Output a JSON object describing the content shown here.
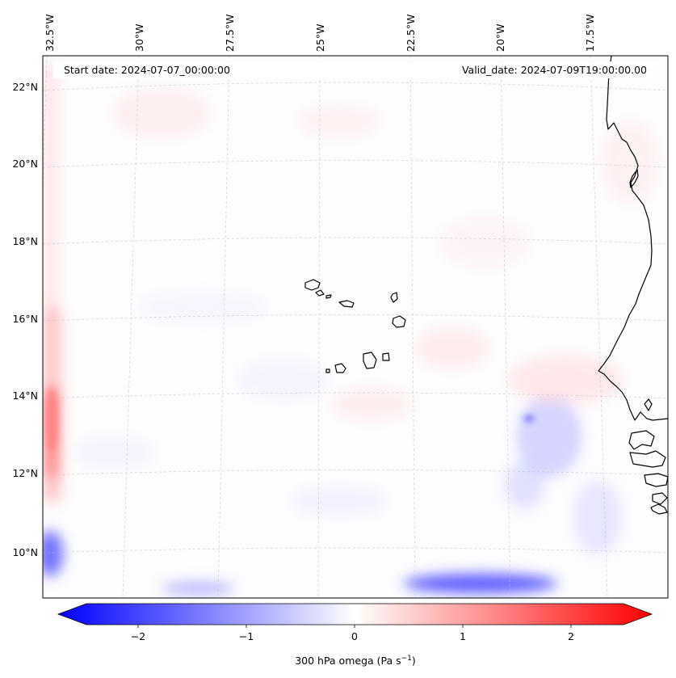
{
  "header": {
    "start_date": "Start date: 2024-07-07_00:00:00",
    "valid_date": "Valid_date: 2024-07-09T19:00:00.00"
  },
  "lon_labels": [
    "32.5°W",
    "30°W",
    "27.5°W",
    "25°W",
    "22.5°W",
    "20°W",
    "17.5°W"
  ],
  "lat_labels": [
    "22°N",
    "20°N",
    "18°N",
    "16°N",
    "14°N",
    "12°N",
    "10°N"
  ],
  "colorbar": {
    "ticks": [
      "−2",
      "−1",
      "0",
      "1",
      "2"
    ],
    "label": "300 hPa omega (Pa s",
    "label_sup": "−1",
    "label_end": ")",
    "range": [
      -2.6,
      2.6
    ],
    "colormap": "bwr"
  },
  "colors": {
    "negative": "#0000ff",
    "positive": "#ff0000",
    "neutral": "#ffffff",
    "coastline": "#000000"
  },
  "chart_data": {
    "type": "heatmap",
    "variable": "300 hPa omega",
    "units": "Pa s^-1",
    "lon_range": [
      -33,
      -16
    ],
    "lat_range": [
      9,
      22.8
    ],
    "color_range": [
      -2.6,
      2.6
    ],
    "features": [
      {
        "where": "western edge near 32.5°W, 12–15°N",
        "value": 1.0
      },
      {
        "where": "western edge near 32.5°W, 9.5–10.5°N",
        "value": -1.5
      },
      {
        "where": "southern edge 22.5°W–19.5°W, near 9°N",
        "value": -2.2
      },
      {
        "where": "near 20°W, 13–14°N",
        "value": -0.8
      },
      {
        "where": "background",
        "value": 0.1
      }
    ]
  }
}
